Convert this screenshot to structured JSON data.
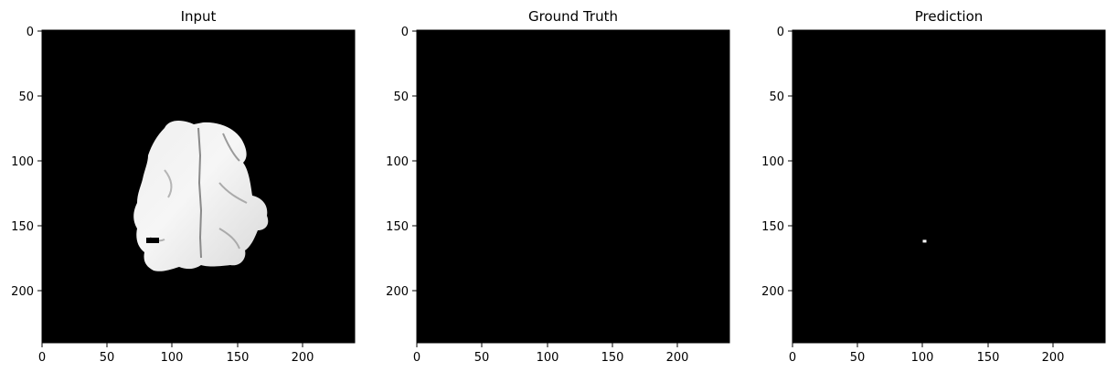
{
  "figure": {
    "panels": [
      {
        "title": "Input",
        "image": "brain-mri-slice",
        "mask_pixels": [],
        "x_ticks": [
          "0",
          "50",
          "100",
          "150",
          "200"
        ],
        "y_ticks": [
          "0",
          "50",
          "100",
          "150",
          "200"
        ]
      },
      {
        "title": "Ground Truth",
        "image": "empty-mask",
        "mask_pixels": [],
        "x_ticks": [
          "0",
          "50",
          "100",
          "150",
          "200"
        ],
        "y_ticks": [
          "0",
          "50",
          "100",
          "150",
          "200"
        ]
      },
      {
        "title": "Prediction",
        "image": "predicted-mask",
        "mask_pixels": [
          {
            "x": 100,
            "y": 161
          }
        ],
        "x_ticks": [
          "0",
          "50",
          "100",
          "150",
          "200"
        ],
        "y_ticks": [
          "0",
          "50",
          "100",
          "150",
          "200"
        ]
      }
    ],
    "axis_range": [
      0,
      240
    ],
    "colors": {
      "background": "#000000",
      "mask": "#ffffff",
      "axes": "#000000",
      "text": "#000000"
    }
  }
}
